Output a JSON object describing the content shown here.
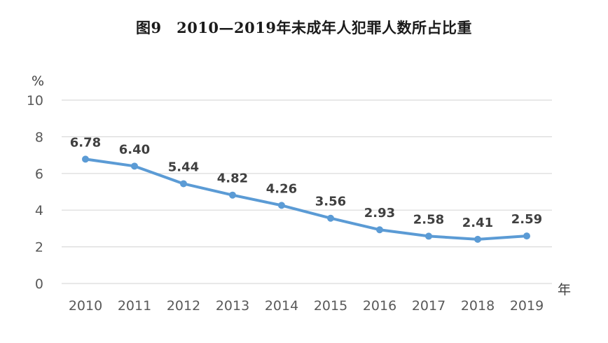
{
  "chart_data": {
    "type": "line",
    "title": "图9　2010—2019年未成年人犯罪人数所占比重",
    "ylabel": "%",
    "xlabel": "年",
    "categories": [
      "2010",
      "2011",
      "2012",
      "2013",
      "2014",
      "2015",
      "2016",
      "2017",
      "2018",
      "2019"
    ],
    "series": [
      {
        "values": [
          6.78,
          6.4,
          5.44,
          4.82,
          4.26,
          3.56,
          2.93,
          2.58,
          2.41,
          2.59
        ]
      }
    ],
    "data_labels": [
      "6.78",
      "6.40",
      "5.44",
      "4.82",
      "4.26",
      "3.56",
      "2.93",
      "2.58",
      "2.41",
      "2.59"
    ],
    "yticks": [
      "0",
      "2",
      "4",
      "6",
      "8",
      "10"
    ],
    "ylim": [
      0,
      10
    ],
    "grid": true,
    "line_color": "#5b9bd5",
    "grid_color": "#d9d9d9"
  }
}
